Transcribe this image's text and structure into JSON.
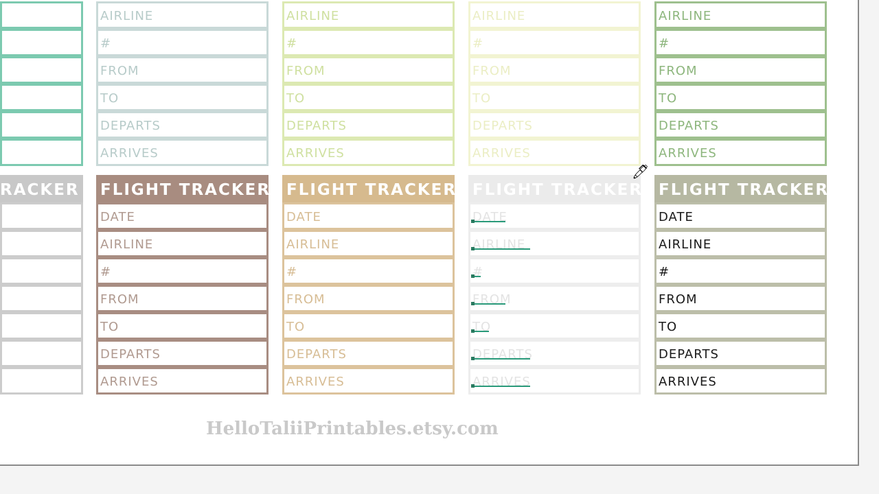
{
  "header_title": "FLIGHT TRACKER",
  "fields": [
    "DATE",
    "AIRLINE",
    "#",
    "FROM",
    "TO",
    "DEPARTS",
    "ARRIVES"
  ],
  "top_row": [
    {
      "border": "#7ccab0",
      "text": "#7ccab0"
    },
    {
      "border": "#c9d9d8",
      "text": "#b7cbc9"
    },
    {
      "border": "#dce9b2",
      "text": "#cfe0a0"
    },
    {
      "border": "#f2f4d2",
      "text": "#ebeec4"
    },
    {
      "border": "#9ec08e",
      "text": "#8db67d"
    }
  ],
  "bottom_row": [
    {
      "border": "#cccccc",
      "text": "#cccccc",
      "header": "#c8c8c8"
    },
    {
      "border": "#a88d82",
      "text": "#b09a90",
      "header": "#a88c80"
    },
    {
      "border": "#dcc39c",
      "text": "#d7bd95",
      "header": "#d6ba8e"
    },
    {
      "border": "#ededed",
      "text": "#e3e3e3",
      "header": "#ebebeb"
    },
    {
      "border": "#bcbea9",
      "text": "#1a1a1a",
      "header": "#b6b8a2"
    }
  ],
  "website": "HelloTaliiPrintables.etsy.com",
  "cursor_icon": "eyedropper-icon"
}
